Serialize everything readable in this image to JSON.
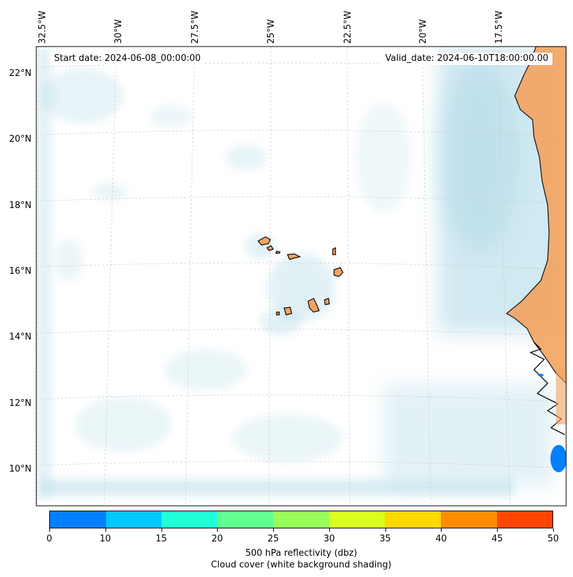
{
  "map": {
    "start_date": "Start date: 2024-06-08_00:00:00",
    "valid_date": "Valid_date: 2024-06-10T18:00:00.00",
    "lon_labels": [
      "32.5°W",
      "30°W",
      "27.5°W",
      "25°W",
      "22.5°W",
      "20°W",
      "17.5°W"
    ],
    "lat_labels": [
      "22°N",
      "20°N",
      "18°N",
      "16°N",
      "14°N",
      "12°N",
      "10°N"
    ],
    "colors": {
      "cloud_shading": "#add8e6",
      "land": "#f4a460",
      "coastline": "#000000",
      "gridline": "#c8c8c8"
    }
  },
  "colorbar": {
    "colors": [
      "#0080ff",
      "#00c8ff",
      "#20ffd8",
      "#60ff90",
      "#98ff58",
      "#d8ff20",
      "#ffd800",
      "#ff8c00",
      "#ff4600"
    ],
    "ticks": [
      "0",
      "10",
      "15",
      "20",
      "25",
      "30",
      "35",
      "40",
      "45",
      "50"
    ],
    "label_line1": "500 hPa reflectivity (dbz)",
    "label_line2": "Cloud cover (white background shading)"
  }
}
